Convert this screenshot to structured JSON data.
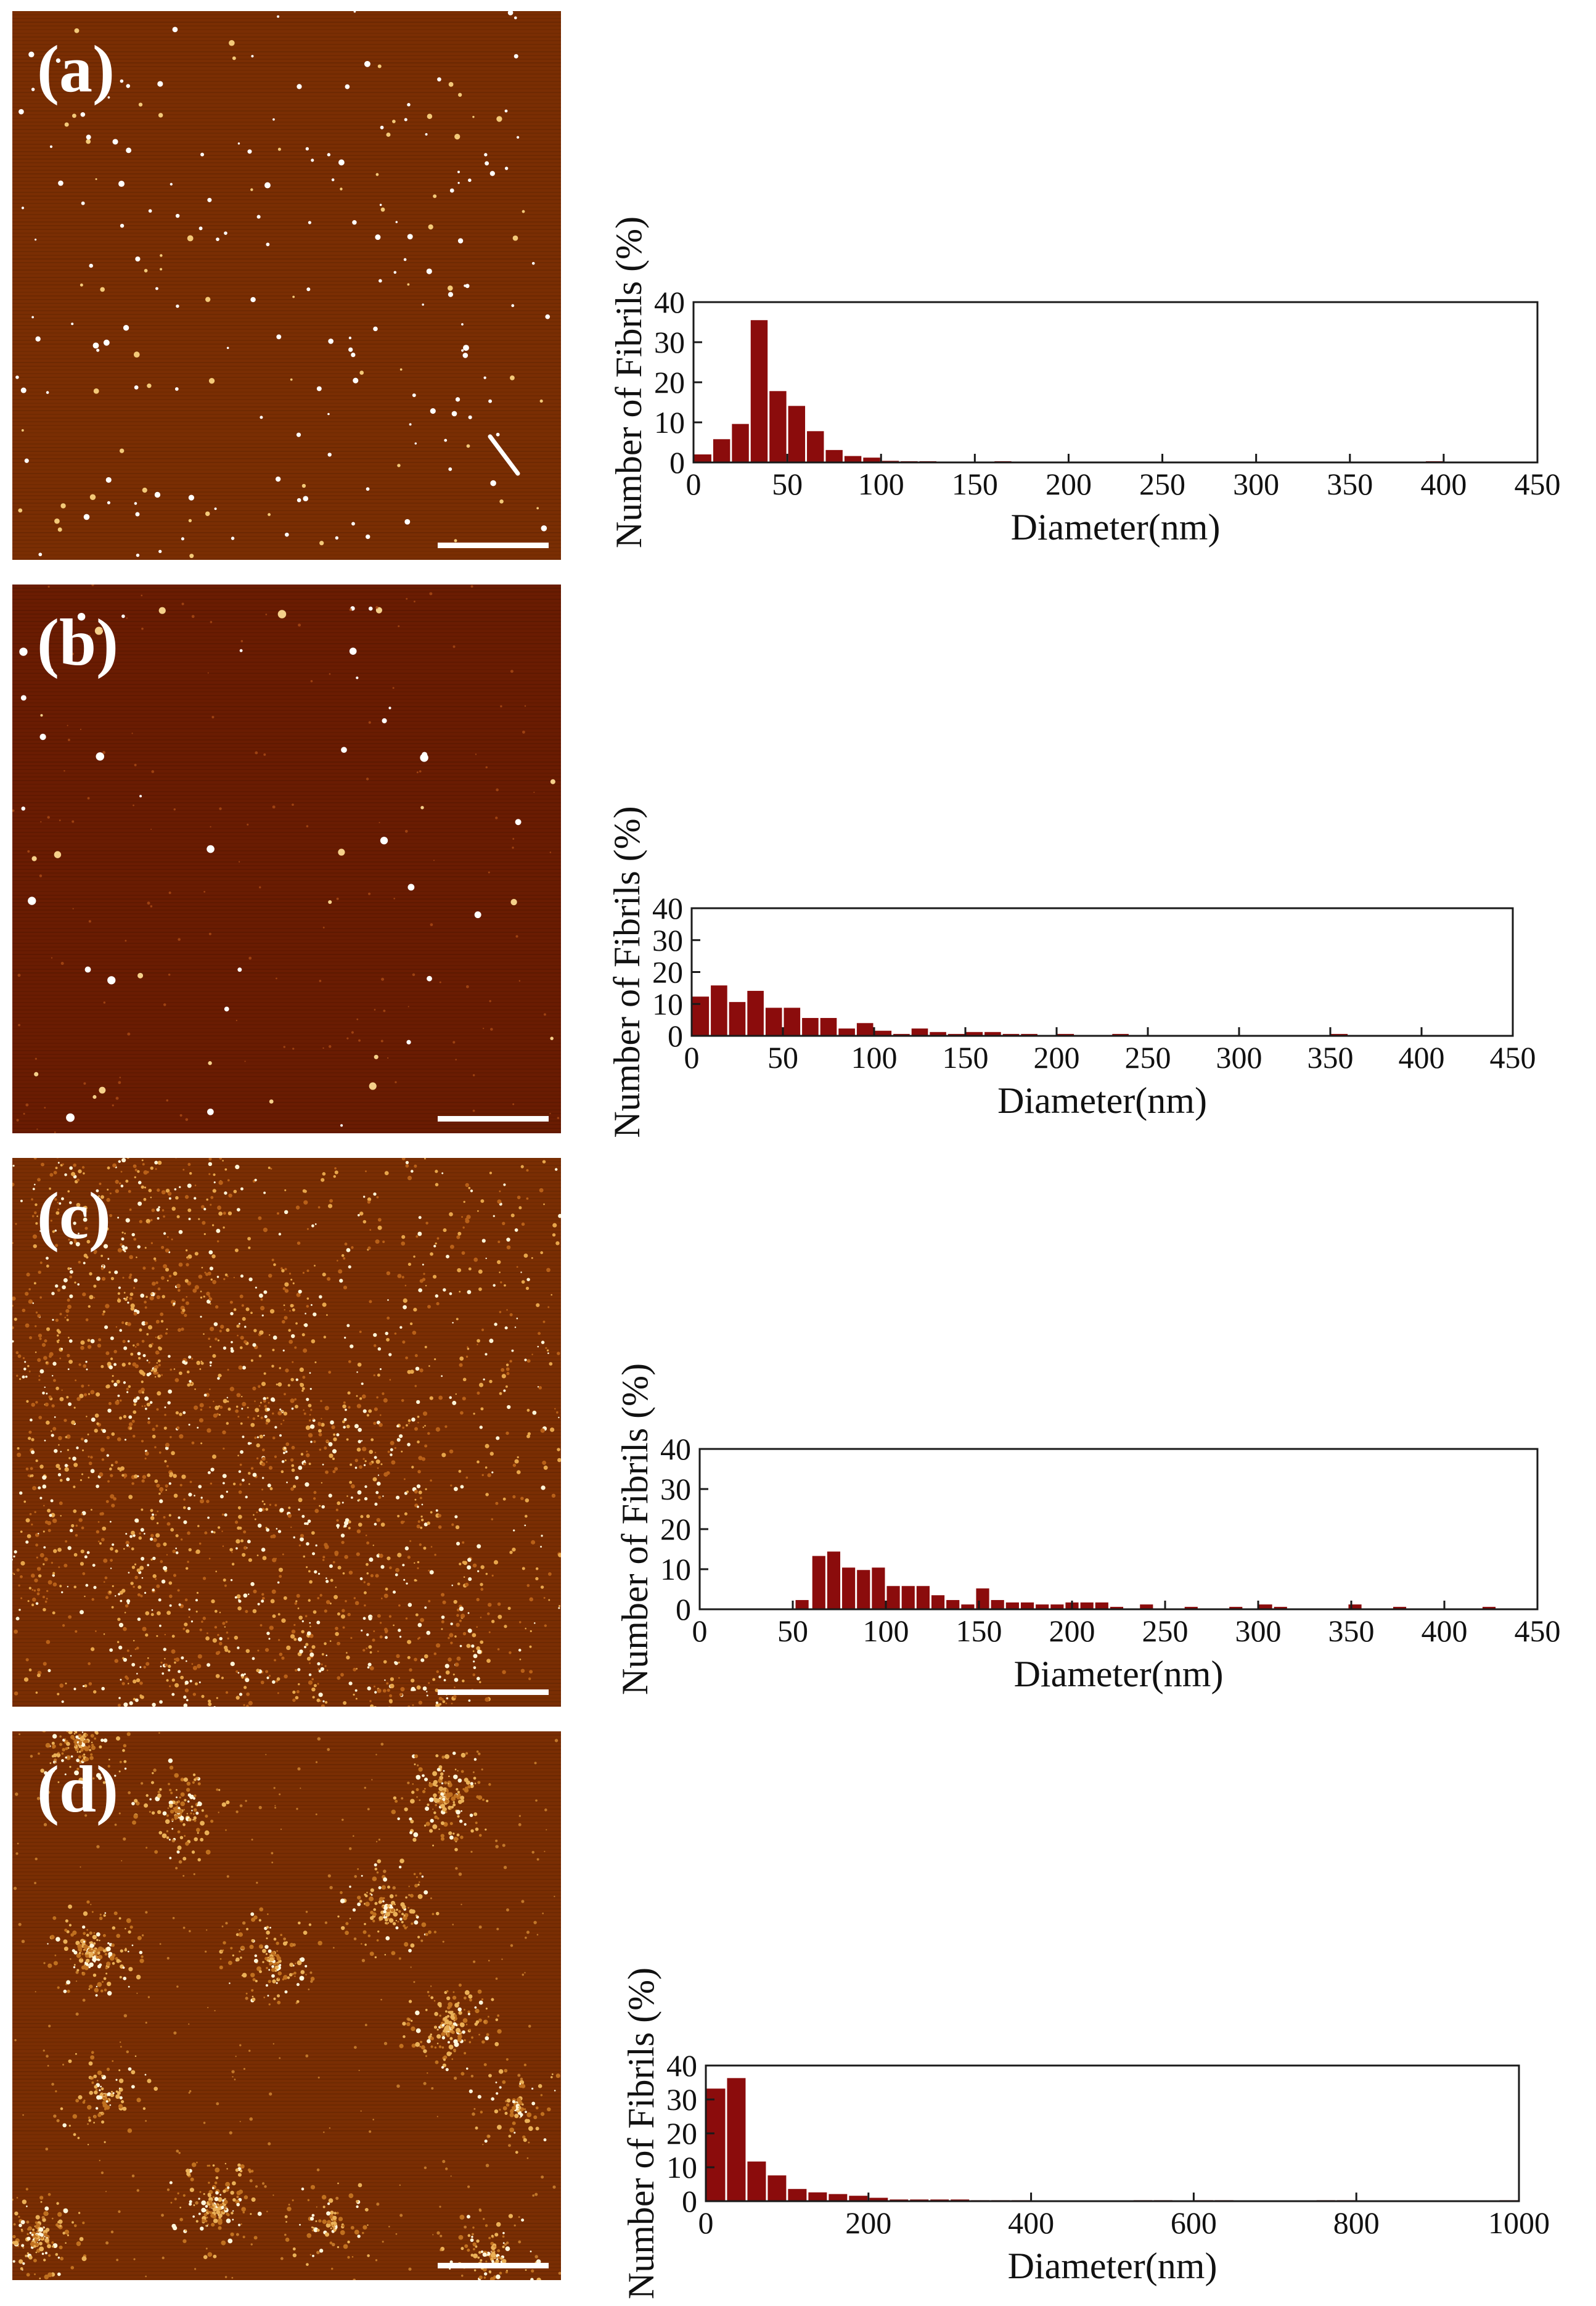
{
  "colors": {
    "bar": "#8b0c0c",
    "axis": "#1a1a1a",
    "afm_bg": "#7a2e03",
    "scale_bar": "#ffffff"
  },
  "panels": [
    {
      "label": "(a)",
      "afm_style": "dots",
      "chart_data": {
        "type": "bar",
        "xlabel": "Diameter(nm)",
        "ylabel": "Number of Fibrils (%)",
        "xlim": [
          0,
          450
        ],
        "ylim": [
          0,
          40
        ],
        "xticks": [
          0,
          50,
          100,
          150,
          200,
          250,
          300,
          350,
          400,
          450
        ],
        "yticks": [
          0,
          10,
          20,
          30,
          40
        ],
        "bin_width": 10,
        "x": [
          5,
          15,
          25,
          35,
          45,
          55,
          65,
          75,
          85,
          95,
          105,
          115,
          125,
          135,
          165,
          395
        ],
        "values": [
          2,
          5.8,
          9.6,
          35.5,
          17.8,
          14.1,
          7.8,
          3.1,
          1.6,
          1.2,
          0.4,
          0.3,
          0.3,
          0.2,
          0.3,
          0.3
        ]
      }
    },
    {
      "label": "(b)",
      "afm_style": "sparse",
      "chart_data": {
        "type": "bar",
        "xlabel": "Diameter(nm)",
        "ylabel": "Number of Fibrils (%)",
        "xlim": [
          0,
          450
        ],
        "ylim": [
          0,
          40
        ],
        "xticks": [
          0,
          50,
          100,
          150,
          200,
          250,
          300,
          350,
          400,
          450
        ],
        "yticks": [
          0,
          10,
          20,
          30,
          40
        ],
        "bin_width": 10,
        "x": [
          5,
          15,
          25,
          35,
          45,
          55,
          65,
          75,
          85,
          95,
          105,
          115,
          125,
          135,
          145,
          155,
          165,
          175,
          185,
          205,
          235,
          355
        ],
        "values": [
          12.3,
          15.8,
          10.6,
          14.1,
          8.8,
          8.8,
          5.6,
          5.6,
          2.3,
          4.0,
          1.6,
          0.6,
          2.3,
          1.2,
          0.6,
          1.2,
          1.2,
          0.6,
          0.6,
          0.6,
          0.6,
          0.6
        ]
      }
    },
    {
      "label": "(c)",
      "afm_style": "dense",
      "chart_data": {
        "type": "bar",
        "xlabel": "Diameter(nm)",
        "ylabel": "Number of Fibrils (%)",
        "xlim": [
          0,
          450
        ],
        "ylim": [
          0,
          40
        ],
        "xticks": [
          0,
          50,
          100,
          150,
          200,
          250,
          300,
          350,
          400,
          450
        ],
        "yticks": [
          0,
          10,
          20,
          30,
          40
        ],
        "bin_width": 8,
        "x": [
          55,
          64,
          72,
          80,
          88,
          96,
          104,
          112,
          120,
          128,
          136,
          144,
          152,
          160,
          168,
          176,
          184,
          192,
          200,
          208,
          216,
          224,
          240,
          264,
          288,
          304,
          312,
          352,
          376,
          424
        ],
        "values": [
          2.3,
          13.3,
          14.4,
          10.4,
          9.8,
          10.4,
          5.8,
          5.8,
          5.8,
          3.5,
          2.3,
          1.2,
          5.2,
          2.3,
          1.7,
          1.7,
          1.2,
          1.2,
          1.7,
          1.7,
          1.7,
          0.6,
          1.2,
          0.6,
          0.6,
          1.2,
          0.6,
          1.2,
          0.6,
          0.6
        ]
      }
    },
    {
      "label": "(d)",
      "afm_style": "clusters",
      "chart_data": {
        "type": "bar",
        "xlabel": "Diameter(nm)",
        "ylabel": "Number of Fibrils (%)",
        "xlim": [
          0,
          1000
        ],
        "ylim": [
          0,
          40
        ],
        "xticks": [
          0,
          200,
          400,
          600,
          800,
          1000
        ],
        "yticks": [
          0,
          10,
          20,
          30,
          40
        ],
        "bin_width": 25,
        "x": [
          12.5,
          37.5,
          62.5,
          87.5,
          112.5,
          137.5,
          162.5,
          187.5,
          212.5,
          237.5,
          262.5,
          287.5,
          312.5,
          337.5,
          362.5,
          387.5,
          537.5,
          562.5,
          612.5,
          637.5,
          762.5,
          787.5,
          987.5
        ],
        "values": [
          33.2,
          36.3,
          11.7,
          7.6,
          3.6,
          2.6,
          2.1,
          1.6,
          1.0,
          0.5,
          0.5,
          0.5,
          0.5,
          0.3,
          0.3,
          0.3,
          0.3,
          0.3,
          0.3,
          0.3,
          0.3,
          0.3,
          0.3
        ]
      }
    }
  ]
}
